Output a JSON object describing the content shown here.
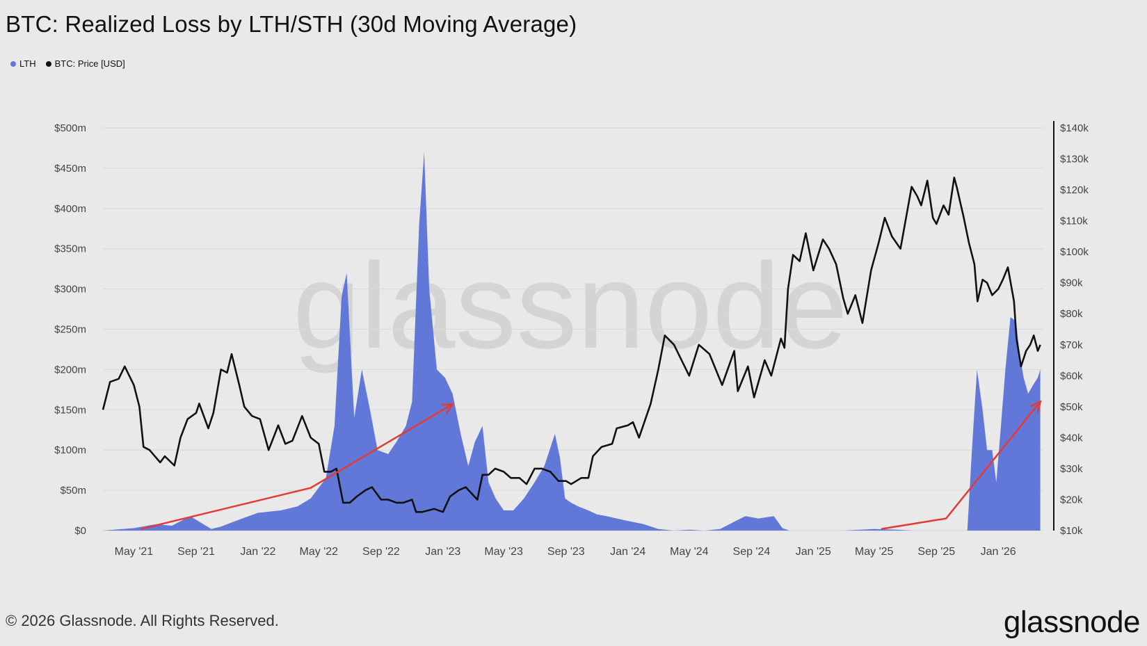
{
  "title": "BTC: Realized Loss by LTH/STH (30d Moving Average)",
  "legend": [
    {
      "label": "LTH",
      "color": "#6278d8"
    },
    {
      "label": "BTC: Price [USD]",
      "color": "#111111"
    }
  ],
  "watermark": "glassnode",
  "footer": "© 2026 Glassnode. All Rights Reserved.",
  "brand": "glassnode",
  "chart_data": {
    "type": "area",
    "grid": true,
    "legend_position": "top-left",
    "x_ticks": [
      "May '21",
      "Sep '21",
      "Jan '22",
      "May '22",
      "Sep '22",
      "Jan '23",
      "May '23",
      "Sep '23",
      "Jan '24",
      "May '24",
      "Sep '24",
      "Jan '25",
      "May '25",
      "Sep '25",
      "Jan '26"
    ],
    "x_tick_dates": [
      "2021-05-01",
      "2021-09-01",
      "2022-01-01",
      "2022-05-01",
      "2022-09-01",
      "2023-01-01",
      "2023-05-01",
      "2023-09-01",
      "2024-01-01",
      "2024-05-01",
      "2024-09-01",
      "2025-01-01",
      "2025-05-01",
      "2025-09-01",
      "2026-01-01"
    ],
    "xlim": [
      "2021-03-01",
      "2026-03-31"
    ],
    "y_left": {
      "ticks": [
        "$0",
        "$50m",
        "$100m",
        "$150m",
        "$200m",
        "$250m",
        "$300m",
        "$350m",
        "$400m",
        "$450m",
        "$500m"
      ],
      "range": [
        0,
        500
      ],
      "unit": "USD millions"
    },
    "y_right": {
      "ticks": [
        "$10k",
        "$20k",
        "$30k",
        "$40k",
        "$50k",
        "$60k",
        "$70k",
        "$80k",
        "$90k",
        "$100k",
        "$110k",
        "$120k",
        "$130k",
        "$140k"
      ],
      "range": [
        10,
        140
      ],
      "unit": "USD thousands"
    },
    "series": [
      {
        "name": "LTH",
        "axis": "left",
        "color": "#6278d8",
        "x": [
          "2021-03-01",
          "2021-05-01",
          "2021-06-15",
          "2021-07-15",
          "2021-08-20",
          "2021-10-01",
          "2021-10-20",
          "2021-11-10",
          "2021-12-01",
          "2022-01-01",
          "2022-02-15",
          "2022-03-20",
          "2022-04-15",
          "2022-05-15",
          "2022-06-01",
          "2022-06-15",
          "2022-06-25",
          "2022-07-10",
          "2022-07-25",
          "2022-08-10",
          "2022-08-25",
          "2022-09-15",
          "2022-10-01",
          "2022-10-20",
          "2022-11-01",
          "2022-11-15",
          "2022-11-25",
          "2022-12-05",
          "2022-12-20",
          "2023-01-05",
          "2023-01-20",
          "2023-02-05",
          "2023-02-20",
          "2023-03-05",
          "2023-03-20",
          "2023-04-01",
          "2023-04-15",
          "2023-05-01",
          "2023-05-20",
          "2023-06-10",
          "2023-07-01",
          "2023-07-20",
          "2023-08-10",
          "2023-08-20",
          "2023-08-30",
          "2023-09-10",
          "2023-09-25",
          "2023-10-15",
          "2023-11-01",
          "2023-11-20",
          "2023-12-10",
          "2024-01-01",
          "2024-02-01",
          "2024-03-01",
          "2024-04-01",
          "2024-05-01",
          "2024-06-01",
          "2024-07-01",
          "2024-08-01",
          "2024-08-20",
          "2024-09-15",
          "2024-10-15",
          "2024-11-01",
          "2024-11-15",
          "2025-01-01",
          "2025-03-01",
          "2025-05-01",
          "2025-06-15",
          "2025-07-15",
          "2025-09-01",
          "2025-10-15",
          "2025-11-01",
          "2025-11-10",
          "2025-11-20",
          "2025-12-01",
          "2025-12-10",
          "2025-12-20",
          "2025-12-28",
          "2026-01-05",
          "2026-01-15",
          "2026-01-25",
          "2026-02-05",
          "2026-02-12",
          "2026-02-20",
          "2026-03-01",
          "2026-03-10",
          "2026-03-20",
          "2026-03-25"
        ],
        "values": [
          0,
          3,
          8,
          6,
          18,
          2,
          5,
          10,
          15,
          22,
          25,
          30,
          40,
          65,
          130,
          290,
          320,
          140,
          200,
          150,
          100,
          95,
          110,
          130,
          160,
          380,
          470,
          300,
          200,
          190,
          170,
          120,
          80,
          110,
          130,
          60,
          40,
          25,
          25,
          40,
          60,
          80,
          120,
          90,
          40,
          35,
          30,
          25,
          20,
          18,
          15,
          12,
          8,
          2,
          0,
          1,
          0,
          2,
          12,
          18,
          15,
          18,
          3,
          0,
          0,
          0,
          2,
          1,
          0,
          0,
          0,
          0,
          100,
          200,
          150,
          100,
          100,
          60,
          120,
          200,
          265,
          260,
          220,
          190,
          170,
          180,
          190,
          200
        ]
      },
      {
        "name": "BTC: Price [USD]",
        "axis": "right",
        "color": "#111111",
        "x": [
          "2021-03-01",
          "2021-03-15",
          "2021-04-01",
          "2021-04-13",
          "2021-05-01",
          "2021-05-12",
          "2021-05-20",
          "2021-06-01",
          "2021-06-22",
          "2021-07-01",
          "2021-07-20",
          "2021-08-01",
          "2021-08-15",
          "2021-09-01",
          "2021-09-07",
          "2021-09-25",
          "2021-10-05",
          "2021-10-20",
          "2021-11-01",
          "2021-11-10",
          "2021-11-25",
          "2021-12-05",
          "2021-12-20",
          "2022-01-05",
          "2022-01-22",
          "2022-02-10",
          "2022-02-24",
          "2022-03-10",
          "2022-03-29",
          "2022-04-15",
          "2022-05-01",
          "2022-05-12",
          "2022-05-25",
          "2022-06-05",
          "2022-06-18",
          "2022-07-01",
          "2022-07-15",
          "2022-08-01",
          "2022-08-14",
          "2022-09-01",
          "2022-09-15",
          "2022-10-01",
          "2022-10-15",
          "2022-11-01",
          "2022-11-09",
          "2022-11-21",
          "2022-12-15",
          "2023-01-01",
          "2023-01-15",
          "2023-02-01",
          "2023-02-15",
          "2023-03-10",
          "2023-03-20",
          "2023-04-01",
          "2023-04-14",
          "2023-05-01",
          "2023-05-15",
          "2023-06-01",
          "2023-06-15",
          "2023-07-01",
          "2023-07-15",
          "2023-08-01",
          "2023-08-17",
          "2023-09-01",
          "2023-09-11",
          "2023-10-01",
          "2023-10-15",
          "2023-10-24",
          "2023-11-10",
          "2023-12-01",
          "2023-12-10",
          "2024-01-01",
          "2024-01-11",
          "2024-01-23",
          "2024-02-15",
          "2024-03-01",
          "2024-03-14",
          "2024-04-01",
          "2024-04-13",
          "2024-05-01",
          "2024-05-20",
          "2024-06-10",
          "2024-07-05",
          "2024-07-29",
          "2024-08-05",
          "2024-08-25",
          "2024-09-06",
          "2024-09-27",
          "2024-10-10",
          "2024-10-29",
          "2024-11-05",
          "2024-11-12",
          "2024-11-22",
          "2024-12-05",
          "2024-12-17",
          "2025-01-01",
          "2025-01-20",
          "2025-02-01",
          "2025-02-15",
          "2025-03-01",
          "2025-03-10",
          "2025-03-25",
          "2025-04-08",
          "2025-04-25",
          "2025-05-10",
          "2025-05-22",
          "2025-06-05",
          "2025-06-22",
          "2025-07-14",
          "2025-07-25",
          "2025-08-02",
          "2025-08-14",
          "2025-08-25",
          "2025-09-01",
          "2025-09-15",
          "2025-09-25",
          "2025-10-06",
          "2025-10-11",
          "2025-10-25",
          "2025-11-04",
          "2025-11-15",
          "2025-11-21",
          "2025-12-01",
          "2025-12-10",
          "2025-12-20",
          "2026-01-01",
          "2026-01-10",
          "2026-01-20",
          "2026-02-01",
          "2026-02-06",
          "2026-02-15",
          "2026-02-25",
          "2026-03-05",
          "2026-03-12",
          "2026-03-20",
          "2026-03-25"
        ],
        "values": [
          49,
          58,
          59,
          63,
          57,
          50,
          37,
          36,
          32,
          34,
          31,
          40,
          46,
          48,
          51,
          43,
          48,
          62,
          61,
          67,
          57,
          50,
          47,
          46,
          36,
          44,
          38,
          39,
          47,
          40,
          38,
          29,
          29,
          30,
          19,
          19,
          21,
          23,
          24,
          20,
          20,
          19,
          19,
          20,
          16,
          16,
          17,
          16,
          21,
          23,
          24,
          20,
          28,
          28,
          30,
          29,
          27,
          27,
          25,
          30,
          30,
          29,
          26,
          26,
          25,
          27,
          27,
          34,
          37,
          38,
          43,
          44,
          45,
          40,
          51,
          62,
          73,
          70,
          66,
          60,
          70,
          67,
          57,
          68,
          55,
          63,
          53,
          65,
          60,
          72,
          69,
          88,
          99,
          97,
          106,
          94,
          104,
          101,
          96,
          85,
          80,
          86,
          77,
          94,
          103,
          111,
          105,
          101,
          121,
          118,
          115,
          123,
          111,
          109,
          115,
          112,
          124,
          121,
          111,
          103,
          96,
          84,
          91,
          90,
          86,
          88,
          91,
          95,
          84,
          72,
          63,
          68,
          70,
          73,
          68,
          70
        ]
      }
    ],
    "annotations": [
      {
        "type": "arrow",
        "color": "#e53935",
        "from": [
          "2021-05-15",
          2
        ],
        "via": [
          "2022-04-15",
          53
        ],
        "to": [
          "2023-01-20",
          157
        ]
      },
      {
        "type": "arrow",
        "color": "#e53935",
        "from": [
          "2025-05-15",
          2
        ],
        "via": [
          "2025-09-20",
          15
        ],
        "to": [
          "2026-03-25",
          160
        ]
      }
    ]
  }
}
